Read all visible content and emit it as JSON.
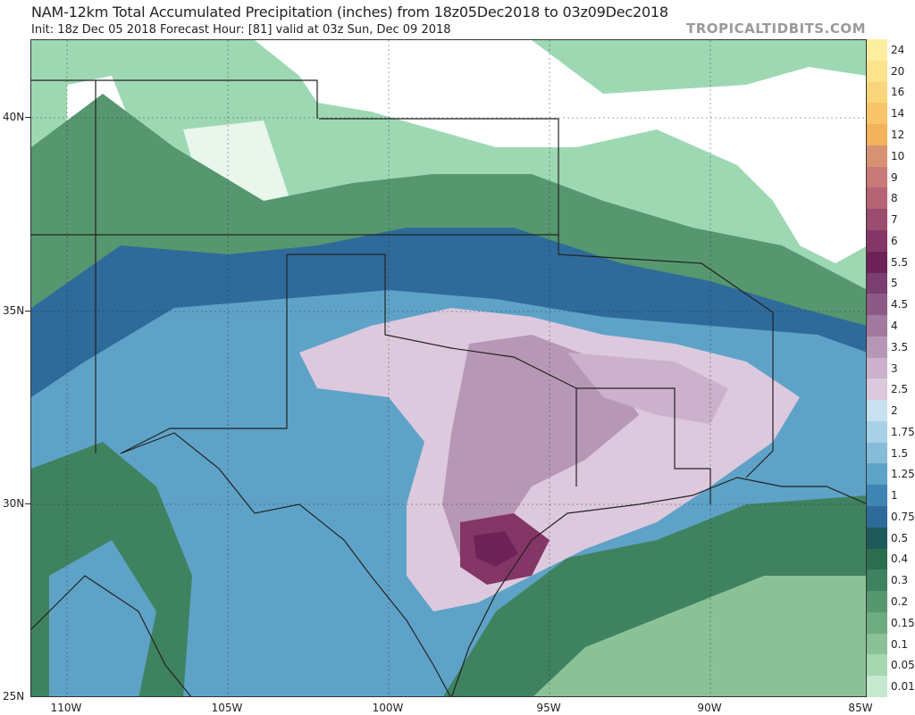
{
  "header": {
    "title": "NAM-12km Total Accumulated Precipitation (inches) from 18z05Dec2018 to 03z09Dec2018",
    "subtitle": "Init: 18z Dec 05 2018   Forecast Hour: [81]   valid at 03z Sun, Dec 09 2018",
    "brand": "TROPICALTIDBITS.COM"
  },
  "axes": {
    "lat_labels": [
      "40N",
      "35N",
      "30N",
      "25N"
    ],
    "lon_labels": [
      "110W",
      "105W",
      "100W",
      "95W",
      "90W",
      "85W"
    ]
  },
  "colorbar": {
    "labels": [
      "24",
      "20",
      "16",
      "14",
      "12",
      "10",
      "9",
      "8",
      "7",
      "6",
      "5.5",
      "5",
      "4.5",
      "4",
      "3.5",
      "3",
      "2.5",
      "2",
      "1.75",
      "1.5",
      "1.25",
      "1",
      "0.75",
      "0.5",
      "0.4",
      "0.3",
      "0.2",
      "0.15",
      "0.1",
      "0.05",
      "0.01"
    ],
    "colors": [
      "#fdeea0",
      "#fde38e",
      "#fbd57c",
      "#f8c56a",
      "#f3b25c",
      "#d89273",
      "#c87a78",
      "#b46475",
      "#9c4c6e",
      "#843666",
      "#6d2358",
      "#7a3f70",
      "#8d5a86",
      "#a27a9e",
      "#b797b6",
      "#cbb1cc",
      "#ddc9de",
      "#c8e1ef",
      "#a8d0e6",
      "#86bcd9",
      "#5ea3c7",
      "#3f85b3",
      "#2f6b9a",
      "#1f5a5a",
      "#2c6d50",
      "#3f8260",
      "#56976f",
      "#6eab80",
      "#8bc196",
      "#a7d7b1",
      "#c5e9ce"
    ]
  }
}
